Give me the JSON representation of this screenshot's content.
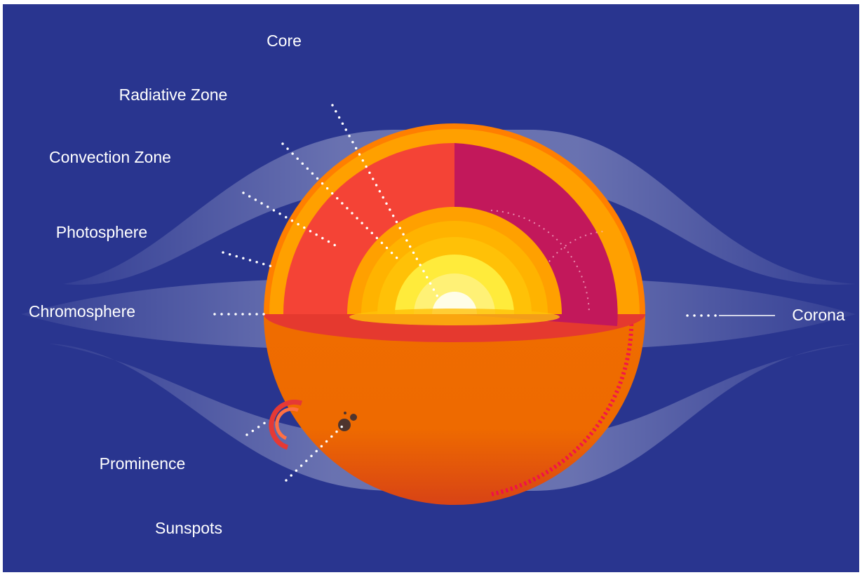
{
  "labels": [
    "Core",
    "Radiative Zone",
    "Convection Zone",
    "Photosphere",
    "Chromosphere",
    "Corona",
    "Prominence",
    "Sunspots"
  ]
}
